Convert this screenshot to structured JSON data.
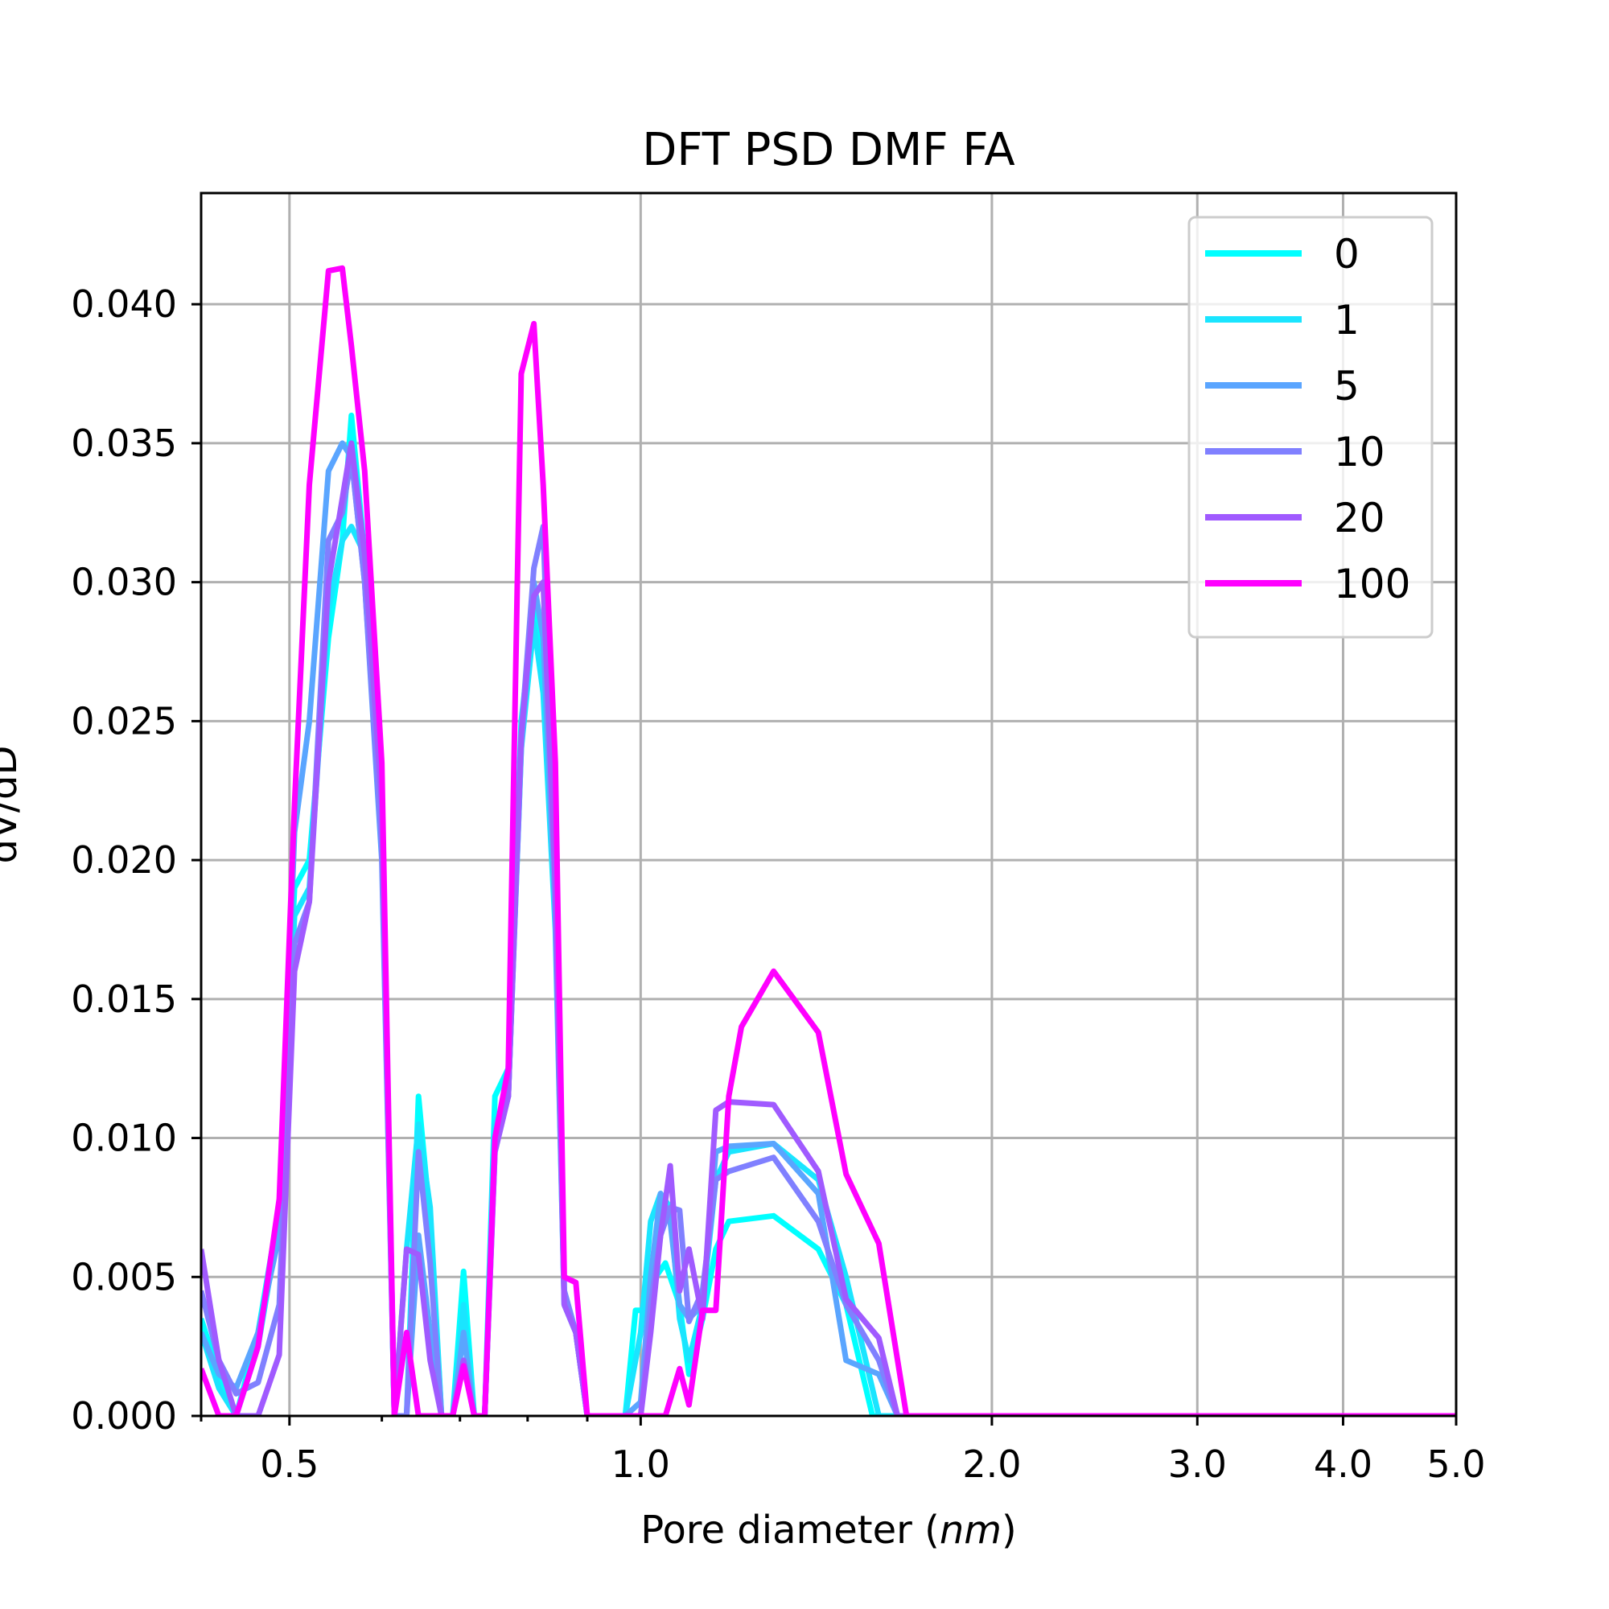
{
  "chart_data": {
    "type": "line",
    "title": "DFT PSD DMF FA",
    "xlabel_prefix": "Pore diameter (",
    "xlabel_italic": "nm",
    "xlabel_suffix": ")",
    "ylabel": "dV/dD",
    "xscale": "log",
    "xlim": [
      0.42,
      5.0
    ],
    "ylim": [
      0,
      0.044
    ],
    "grid": true,
    "legend_position": "upper right",
    "x_ticks": [
      {
        "value": 0.5,
        "label": "0.5"
      },
      {
        "value": 1.0,
        "label": "1.0"
      },
      {
        "value": 2.0,
        "label": "2.0"
      },
      {
        "value": 3.0,
        "label": "3.0"
      },
      {
        "value": 4.0,
        "label": "4.0"
      },
      {
        "value": 5.0,
        "label": "5.0"
      }
    ],
    "x_minor_ticks": [
      0.42,
      0.6,
      0.7,
      0.8,
      0.9
    ],
    "y_ticks": [
      {
        "value": 0.0,
        "label": "0.000"
      },
      {
        "value": 0.005,
        "label": "0.005"
      },
      {
        "value": 0.01,
        "label": "0.010"
      },
      {
        "value": 0.015,
        "label": "0.015"
      },
      {
        "value": 0.02,
        "label": "0.020"
      },
      {
        "value": 0.025,
        "label": "0.025"
      },
      {
        "value": 0.03,
        "label": "0.030"
      },
      {
        "value": 0.035,
        "label": "0.035"
      },
      {
        "value": 0.04,
        "label": "0.040"
      }
    ],
    "series": [
      {
        "name": "0",
        "color": "#00ffff",
        "points": [
          [
            0.42,
            0.0035
          ],
          [
            0.435,
            0.0015
          ],
          [
            0.45,
            0.0
          ],
          [
            0.47,
            0.003
          ],
          [
            0.49,
            0.0075
          ],
          [
            0.505,
            0.019
          ],
          [
            0.52,
            0.02
          ],
          [
            0.54,
            0.028
          ],
          [
            0.555,
            0.0315
          ],
          [
            0.565,
            0.036
          ],
          [
            0.58,
            0.031
          ],
          [
            0.6,
            0.022
          ],
          [
            0.615,
            0.0
          ],
          [
            0.63,
            0.0
          ],
          [
            0.645,
            0.0115
          ],
          [
            0.66,
            0.007
          ],
          [
            0.675,
            0.0
          ],
          [
            0.69,
            0.0
          ],
          [
            0.705,
            0.0052
          ],
          [
            0.72,
            0.0
          ],
          [
            0.735,
            0.0
          ],
          [
            0.75,
            0.0115
          ],
          [
            0.77,
            0.0125
          ],
          [
            0.79,
            0.025
          ],
          [
            0.81,
            0.029
          ],
          [
            0.825,
            0.027
          ],
          [
            0.845,
            0.018
          ],
          [
            0.86,
            0.0045
          ],
          [
            0.88,
            0.003
          ],
          [
            0.9,
            0.0
          ],
          [
            0.97,
            0.0
          ],
          [
            0.99,
            0.0038
          ],
          [
            1.01,
            0.0038
          ],
          [
            1.03,
            0.005
          ],
          [
            1.05,
            0.0055
          ],
          [
            1.08,
            0.004
          ],
          [
            1.1,
            0.0015
          ],
          [
            1.13,
            0.0035
          ],
          [
            1.16,
            0.006
          ],
          [
            1.19,
            0.007
          ],
          [
            1.3,
            0.0072
          ],
          [
            1.42,
            0.006
          ],
          [
            1.5,
            0.004
          ],
          [
            1.58,
            0.0
          ],
          [
            1.9,
            0.0
          ],
          [
            5.0,
            0.0
          ]
        ]
      },
      {
        "name": "1",
        "color": "#1ae5ff",
        "points": [
          [
            0.42,
            0.003
          ],
          [
            0.435,
            0.001
          ],
          [
            0.45,
            0.0
          ],
          [
            0.47,
            0.0025
          ],
          [
            0.49,
            0.007
          ],
          [
            0.505,
            0.018
          ],
          [
            0.52,
            0.019
          ],
          [
            0.54,
            0.029
          ],
          [
            0.555,
            0.0315
          ],
          [
            0.565,
            0.032
          ],
          [
            0.58,
            0.031
          ],
          [
            0.6,
            0.0215
          ],
          [
            0.615,
            0.0
          ],
          [
            0.63,
            0.006
          ],
          [
            0.645,
            0.0105
          ],
          [
            0.66,
            0.0075
          ],
          [
            0.675,
            0.0
          ],
          [
            0.69,
            0.0
          ],
          [
            0.705,
            0.004
          ],
          [
            0.72,
            0.0
          ],
          [
            0.735,
            0.0
          ],
          [
            0.75,
            0.0105
          ],
          [
            0.77,
            0.0115
          ],
          [
            0.79,
            0.024
          ],
          [
            0.81,
            0.0285
          ],
          [
            0.825,
            0.026
          ],
          [
            0.845,
            0.0175
          ],
          [
            0.86,
            0.004
          ],
          [
            0.88,
            0.003
          ],
          [
            0.9,
            0.0
          ],
          [
            0.97,
            0.0
          ],
          [
            1.0,
            0.003
          ],
          [
            1.02,
            0.007
          ],
          [
            1.04,
            0.008
          ],
          [
            1.06,
            0.0075
          ],
          [
            1.08,
            0.0035
          ],
          [
            1.1,
            0.002
          ],
          [
            1.13,
            0.004
          ],
          [
            1.16,
            0.0085
          ],
          [
            1.19,
            0.0095
          ],
          [
            1.3,
            0.0098
          ],
          [
            1.42,
            0.0085
          ],
          [
            1.5,
            0.005
          ],
          [
            1.6,
            0.0
          ],
          [
            1.9,
            0.0
          ],
          [
            5.0,
            0.0
          ]
        ]
      },
      {
        "name": "5",
        "color": "#5aa5ff",
        "points": [
          [
            0.42,
            0.003
          ],
          [
            0.435,
            0.0015
          ],
          [
            0.45,
            0.001
          ],
          [
            0.47,
            0.003
          ],
          [
            0.49,
            0.0065
          ],
          [
            0.505,
            0.021
          ],
          [
            0.52,
            0.025
          ],
          [
            0.54,
            0.034
          ],
          [
            0.555,
            0.035
          ],
          [
            0.565,
            0.0345
          ],
          [
            0.58,
            0.03
          ],
          [
            0.6,
            0.02
          ],
          [
            0.615,
            0.0
          ],
          [
            0.63,
            0.0
          ],
          [
            0.645,
            0.0065
          ],
          [
            0.66,
            0.003
          ],
          [
            0.675,
            0.0
          ],
          [
            0.69,
            0.0
          ],
          [
            0.705,
            0.003
          ],
          [
            0.72,
            0.0
          ],
          [
            0.735,
            0.0
          ],
          [
            0.75,
            0.01
          ],
          [
            0.77,
            0.0115
          ],
          [
            0.79,
            0.024
          ],
          [
            0.81,
            0.03
          ],
          [
            0.825,
            0.028
          ],
          [
            0.845,
            0.018
          ],
          [
            0.86,
            0.004
          ],
          [
            0.88,
            0.003
          ],
          [
            0.9,
            0.0
          ],
          [
            0.97,
            0.0
          ],
          [
            1.0,
            0.0005
          ],
          [
            1.02,
            0.005
          ],
          [
            1.04,
            0.008
          ],
          [
            1.06,
            0.007
          ],
          [
            1.08,
            0.004
          ],
          [
            1.1,
            0.0035
          ],
          [
            1.13,
            0.004
          ],
          [
            1.16,
            0.0095
          ],
          [
            1.19,
            0.0097
          ],
          [
            1.3,
            0.0098
          ],
          [
            1.42,
            0.008
          ],
          [
            1.5,
            0.002
          ],
          [
            1.6,
            0.0015
          ],
          [
            1.66,
            0.0
          ],
          [
            1.9,
            0.0
          ],
          [
            5.0,
            0.0
          ]
        ]
      },
      {
        "name": "10",
        "color": "#8080ff",
        "points": [
          [
            0.42,
            0.0045
          ],
          [
            0.435,
            0.002
          ],
          [
            0.45,
            0.0008
          ],
          [
            0.47,
            0.0012
          ],
          [
            0.49,
            0.004
          ],
          [
            0.505,
            0.017
          ],
          [
            0.52,
            0.0185
          ],
          [
            0.54,
            0.0315
          ],
          [
            0.555,
            0.0325
          ],
          [
            0.565,
            0.0345
          ],
          [
            0.58,
            0.03
          ],
          [
            0.6,
            0.0205
          ],
          [
            0.615,
            0.0
          ],
          [
            0.63,
            0.0
          ],
          [
            0.645,
            0.0095
          ],
          [
            0.66,
            0.0055
          ],
          [
            0.675,
            0.0
          ],
          [
            0.69,
            0.0
          ],
          [
            0.705,
            0.002
          ],
          [
            0.72,
            0.0
          ],
          [
            0.735,
            0.0
          ],
          [
            0.75,
            0.0095
          ],
          [
            0.77,
            0.0115
          ],
          [
            0.79,
            0.0245
          ],
          [
            0.81,
            0.0305
          ],
          [
            0.825,
            0.032
          ],
          [
            0.845,
            0.019
          ],
          [
            0.86,
            0.0045
          ],
          [
            0.88,
            0.003
          ],
          [
            0.9,
            0.0
          ],
          [
            0.97,
            0.0
          ],
          [
            1.0,
            0.0
          ],
          [
            1.02,
            0.004
          ],
          [
            1.04,
            0.0065
          ],
          [
            1.06,
            0.0075
          ],
          [
            1.08,
            0.0074
          ],
          [
            1.1,
            0.0034
          ],
          [
            1.13,
            0.0045
          ],
          [
            1.16,
            0.0085
          ],
          [
            1.19,
            0.0088
          ],
          [
            1.3,
            0.0093
          ],
          [
            1.42,
            0.007
          ],
          [
            1.5,
            0.004
          ],
          [
            1.6,
            0.002
          ],
          [
            1.66,
            0.0
          ],
          [
            1.9,
            0.0
          ],
          [
            5.0,
            0.0
          ]
        ]
      },
      {
        "name": "20",
        "color": "#a05aff",
        "points": [
          [
            0.42,
            0.006
          ],
          [
            0.435,
            0.002
          ],
          [
            0.45,
            0.0
          ],
          [
            0.46,
            0.0
          ],
          [
            0.47,
            0.0
          ],
          [
            0.49,
            0.0022
          ],
          [
            0.505,
            0.016
          ],
          [
            0.52,
            0.0185
          ],
          [
            0.54,
            0.03
          ],
          [
            0.555,
            0.033
          ],
          [
            0.565,
            0.035
          ],
          [
            0.58,
            0.031
          ],
          [
            0.6,
            0.022
          ],
          [
            0.615,
            0.0
          ],
          [
            0.63,
            0.006
          ],
          [
            0.645,
            0.0058
          ],
          [
            0.66,
            0.002
          ],
          [
            0.675,
            0.0
          ],
          [
            0.69,
            0.0
          ],
          [
            0.705,
            0.002
          ],
          [
            0.72,
            0.0
          ],
          [
            0.735,
            0.0
          ],
          [
            0.75,
            0.0095
          ],
          [
            0.77,
            0.0115
          ],
          [
            0.79,
            0.0245
          ],
          [
            0.81,
            0.0295
          ],
          [
            0.825,
            0.03
          ],
          [
            0.845,
            0.019
          ],
          [
            0.86,
            0.004
          ],
          [
            0.88,
            0.003
          ],
          [
            0.9,
            0.0
          ],
          [
            0.97,
            0.0
          ],
          [
            1.0,
            0.0
          ],
          [
            1.02,
            0.003
          ],
          [
            1.04,
            0.0065
          ],
          [
            1.06,
            0.009
          ],
          [
            1.08,
            0.0045
          ],
          [
            1.1,
            0.006
          ],
          [
            1.13,
            0.0035
          ],
          [
            1.16,
            0.011
          ],
          [
            1.19,
            0.0113
          ],
          [
            1.3,
            0.0112
          ],
          [
            1.42,
            0.0088
          ],
          [
            1.5,
            0.0042
          ],
          [
            1.6,
            0.0028
          ],
          [
            1.66,
            0.0
          ],
          [
            1.9,
            0.0
          ],
          [
            5.0,
            0.0
          ]
        ]
      },
      {
        "name": "100",
        "color": "#ff00ff",
        "points": [
          [
            0.42,
            0.0017
          ],
          [
            0.435,
            0.0
          ],
          [
            0.45,
            0.0
          ],
          [
            0.47,
            0.0025
          ],
          [
            0.49,
            0.0078
          ],
          [
            0.505,
            0.022
          ],
          [
            0.52,
            0.0335
          ],
          [
            0.54,
            0.0412
          ],
          [
            0.555,
            0.0413
          ],
          [
            0.565,
            0.0385
          ],
          [
            0.58,
            0.034
          ],
          [
            0.6,
            0.0235
          ],
          [
            0.615,
            0.0
          ],
          [
            0.63,
            0.003
          ],
          [
            0.645,
            0.0
          ],
          [
            0.66,
            0.0
          ],
          [
            0.675,
            0.0
          ],
          [
            0.69,
            0.0
          ],
          [
            0.705,
            0.0018
          ],
          [
            0.72,
            0.0
          ],
          [
            0.735,
            0.0
          ],
          [
            0.75,
            0.01
          ],
          [
            0.77,
            0.0125
          ],
          [
            0.79,
            0.0375
          ],
          [
            0.81,
            0.0393
          ],
          [
            0.825,
            0.0335
          ],
          [
            0.845,
            0.0235
          ],
          [
            0.86,
            0.005
          ],
          [
            0.88,
            0.0048
          ],
          [
            0.9,
            0.0
          ],
          [
            0.97,
            0.0
          ],
          [
            1.05,
            0.0
          ],
          [
            1.08,
            0.0017
          ],
          [
            1.1,
            0.0004
          ],
          [
            1.13,
            0.0038
          ],
          [
            1.16,
            0.0038
          ],
          [
            1.19,
            0.0115
          ],
          [
            1.22,
            0.014
          ],
          [
            1.3,
            0.016
          ],
          [
            1.42,
            0.0138
          ],
          [
            1.5,
            0.0087
          ],
          [
            1.6,
            0.0062
          ],
          [
            1.69,
            0.0
          ],
          [
            1.9,
            0.0
          ],
          [
            5.0,
            0.0
          ]
        ]
      }
    ]
  }
}
